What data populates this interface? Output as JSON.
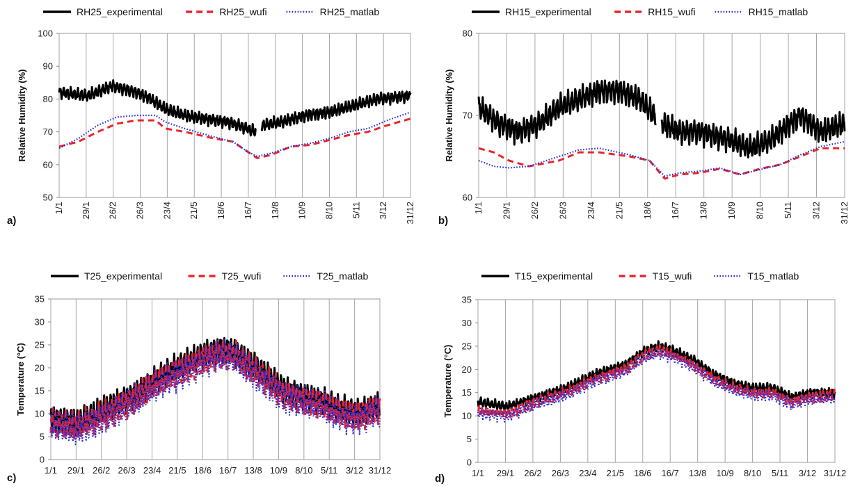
{
  "chart_data": [
    {
      "panel_label": "a)",
      "type": "line",
      "ylabel": "Relative Humidity (%)",
      "ylim": [
        50,
        100
      ],
      "yticks": [
        50,
        60,
        70,
        80,
        90,
        100
      ],
      "xticks": [
        "1/1",
        "29/1",
        "26/2",
        "26/3",
        "23/4",
        "21/5",
        "18/6",
        "16/7",
        "13/8",
        "10/9",
        "8/10",
        "5/11",
        "3/12",
        "31/12"
      ],
      "x_tick_rotation": "vertical",
      "grid": "vertical",
      "legend_position": "top",
      "series": [
        {
          "name": "RH25_experimental",
          "color": "#000000",
          "style": "solid",
          "noise": 2.2,
          "gaps": [
            [
              204,
              210
            ]
          ],
          "points": [
            [
              0,
              82
            ],
            [
              30,
              81
            ],
            [
              55,
              84
            ],
            [
              80,
              82
            ],
            [
              95,
              80
            ],
            [
              110,
              77
            ],
            [
              130,
              75
            ],
            [
              150,
              74
            ],
            [
              175,
              73
            ],
            [
              195,
              71
            ],
            [
              203,
              70
            ],
            [
              211,
              72
            ],
            [
              230,
              73
            ],
            [
              255,
              75
            ],
            [
              280,
              76
            ],
            [
              305,
              78
            ],
            [
              330,
              80
            ],
            [
              364,
              81
            ]
          ]
        },
        {
          "name": "RH25_wufi",
          "color": "#e8262b",
          "style": "dashed",
          "noise": 0,
          "points": [
            [
              0,
              65.5
            ],
            [
              20,
              67
            ],
            [
              40,
              70
            ],
            [
              60,
              72.5
            ],
            [
              80,
              73.5
            ],
            [
              100,
              73.5
            ],
            [
              110,
              71
            ],
            [
              130,
              70
            ],
            [
              160,
              68
            ],
            [
              180,
              67
            ],
            [
              195,
              64
            ],
            [
              205,
              62
            ],
            [
              220,
              63
            ],
            [
              240,
              65.5
            ],
            [
              260,
              66
            ],
            [
              280,
              67.5
            ],
            [
              300,
              69
            ],
            [
              320,
              70
            ],
            [
              340,
              72
            ],
            [
              364,
              74
            ]
          ]
        },
        {
          "name": "RH25_matlab",
          "color": "#2b2bdc",
          "style": "dotted",
          "noise": 0,
          "points": [
            [
              0,
              65
            ],
            [
              20,
              68
            ],
            [
              40,
              72
            ],
            [
              60,
              74.5
            ],
            [
              80,
              75
            ],
            [
              100,
              75
            ],
            [
              110,
              73
            ],
            [
              130,
              71
            ],
            [
              160,
              68.5
            ],
            [
              180,
              67
            ],
            [
              195,
              64
            ],
            [
              205,
              62.5
            ],
            [
              220,
              63.5
            ],
            [
              240,
              65.5
            ],
            [
              260,
              66.5
            ],
            [
              280,
              68
            ],
            [
              300,
              70
            ],
            [
              320,
              71
            ],
            [
              340,
              73.5
            ],
            [
              364,
              76
            ]
          ]
        }
      ]
    },
    {
      "panel_label": "b)",
      "type": "line",
      "ylabel": "Relative Humidity (%)",
      "ylim": [
        60,
        80
      ],
      "yticks": [
        60,
        70,
        80
      ],
      "xticks": [
        "1/1",
        "29/1",
        "26/2",
        "26/3",
        "23/4",
        "21/5",
        "18/6",
        "16/7",
        "13/8",
        "10/9",
        "8/10",
        "5/11",
        "3/12",
        "31/12"
      ],
      "x_tick_rotation": "vertical",
      "grid": "vertical",
      "legend_position": "top",
      "series": [
        {
          "name": "RH15_experimental",
          "color": "#000000",
          "style": "solid",
          "noise": 1.8,
          "gaps": [
            [
              176,
              182
            ]
          ],
          "points": [
            [
              0,
              71
            ],
            [
              20,
              69
            ],
            [
              40,
              68
            ],
            [
              60,
              69
            ],
            [
              80,
              71
            ],
            [
              100,
              72
            ],
            [
              120,
              73
            ],
            [
              140,
              73
            ],
            [
              160,
              72
            ],
            [
              175,
              70
            ],
            [
              183,
              69
            ],
            [
              200,
              68
            ],
            [
              220,
              68
            ],
            [
              250,
              67
            ],
            [
              270,
              66
            ],
            [
              290,
              67
            ],
            [
              320,
              70
            ],
            [
              340,
              68
            ],
            [
              364,
              69
            ]
          ]
        },
        {
          "name": "RH15_wufi",
          "color": "#e8262b",
          "style": "dashed",
          "noise": 0,
          "points": [
            [
              0,
              66
            ],
            [
              15,
              65.5
            ],
            [
              30,
              64.5
            ],
            [
              50,
              63.8
            ],
            [
              80,
              64.5
            ],
            [
              100,
              65.5
            ],
            [
              120,
              65.5
            ],
            [
              150,
              65
            ],
            [
              170,
              64.5
            ],
            [
              185,
              62.3
            ],
            [
              200,
              62.8
            ],
            [
              220,
              63
            ],
            [
              240,
              63.5
            ],
            [
              260,
              62.8
            ],
            [
              280,
              63.5
            ],
            [
              300,
              64
            ],
            [
              320,
              65
            ],
            [
              340,
              66
            ],
            [
              364,
              66
            ]
          ]
        },
        {
          "name": "RH15_matlab",
          "color": "#2b2bdc",
          "style": "dotted",
          "noise": 0,
          "points": [
            [
              0,
              64.5
            ],
            [
              15,
              63.8
            ],
            [
              30,
              63.6
            ],
            [
              50,
              63.8
            ],
            [
              80,
              65
            ],
            [
              100,
              65.8
            ],
            [
              120,
              66
            ],
            [
              150,
              65.2
            ],
            [
              170,
              64.5
            ],
            [
              185,
              62.6
            ],
            [
              200,
              63
            ],
            [
              220,
              63.2
            ],
            [
              240,
              63.6
            ],
            [
              260,
              62.8
            ],
            [
              280,
              63.4
            ],
            [
              300,
              64
            ],
            [
              320,
              65.2
            ],
            [
              340,
              66.2
            ],
            [
              364,
              66.8
            ]
          ]
        }
      ]
    },
    {
      "panel_label": "c)",
      "type": "line",
      "ylabel": "Temperature (°C)",
      "ylim": [
        0,
        35
      ],
      "yticks": [
        0,
        5,
        10,
        15,
        20,
        25,
        30,
        35
      ],
      "xticks": [
        "1/1",
        "29/1",
        "26/2",
        "26/3",
        "23/4",
        "21/5",
        "18/6",
        "16/7",
        "13/8",
        "10/9",
        "8/10",
        "5/11",
        "3/12",
        "31/12"
      ],
      "x_tick_rotation": "horizontal",
      "grid": "vertical",
      "legend_position": "top",
      "series": [
        {
          "name": "T25_experimental",
          "color": "#000000",
          "style": "solid",
          "noise": 3.5,
          "points": [
            [
              0,
              9
            ],
            [
              30,
              8
            ],
            [
              60,
              11
            ],
            [
              90,
              14
            ],
            [
              120,
              18
            ],
            [
              150,
              21
            ],
            [
              170,
              23
            ],
            [
              185,
              24
            ],
            [
              200,
              24
            ],
            [
              220,
              21
            ],
            [
              240,
              18
            ],
            [
              260,
              15
            ],
            [
              280,
              14
            ],
            [
              300,
              13
            ],
            [
              320,
              11
            ],
            [
              340,
              10
            ],
            [
              364,
              12
            ]
          ]
        },
        {
          "name": "T25_wufi",
          "color": "#e8262b",
          "style": "dashed",
          "noise": 3.8,
          "points": [
            [
              0,
              8
            ],
            [
              30,
              7
            ],
            [
              60,
              10
            ],
            [
              90,
              13
            ],
            [
              120,
              17
            ],
            [
              150,
              20
            ],
            [
              170,
              22
            ],
            [
              185,
              23
            ],
            [
              200,
              23
            ],
            [
              220,
              20
            ],
            [
              240,
              17
            ],
            [
              260,
              14
            ],
            [
              280,
              13
            ],
            [
              300,
              12
            ],
            [
              320,
              10
            ],
            [
              340,
              9.5
            ],
            [
              364,
              11.5
            ]
          ]
        },
        {
          "name": "T25_matlab",
          "color": "#2b2bdc",
          "style": "dotted",
          "noise": 4.2,
          "points": [
            [
              0,
              7.5
            ],
            [
              30,
              6.5
            ],
            [
              60,
              9.5
            ],
            [
              90,
              12.5
            ],
            [
              120,
              16.5
            ],
            [
              150,
              19.5
            ],
            [
              170,
              21.5
            ],
            [
              185,
              22.5
            ],
            [
              200,
              22.5
            ],
            [
              220,
              19.5
            ],
            [
              240,
              16.5
            ],
            [
              260,
              13.5
            ],
            [
              280,
              12.5
            ],
            [
              300,
              11.5
            ],
            [
              320,
              9.5
            ],
            [
              340,
              9
            ],
            [
              364,
              11
            ]
          ]
        }
      ]
    },
    {
      "panel_label": "d)",
      "type": "line",
      "ylabel": "Temperature (°C)",
      "ylim": [
        0,
        35
      ],
      "yticks": [
        0,
        5,
        10,
        15,
        20,
        25,
        30,
        35
      ],
      "xticks": [
        "1/1",
        "29/1",
        "26/2",
        "26/3",
        "23/4",
        "21/5",
        "18/6",
        "16/7",
        "13/8",
        "10/9",
        "8/10",
        "5/11",
        "3/12",
        "31/12"
      ],
      "x_tick_rotation": "horizontal",
      "grid": "vertical",
      "legend_position": "top",
      "series": [
        {
          "name": "T15_experimental",
          "color": "#000000",
          "style": "solid",
          "noise": 1.2,
          "points": [
            [
              0,
              13
            ],
            [
              30,
              12
            ],
            [
              60,
              14
            ],
            [
              90,
              16
            ],
            [
              120,
              19
            ],
            [
              150,
              21
            ],
            [
              170,
              24
            ],
            [
              185,
              25
            ],
            [
              200,
              24
            ],
            [
              220,
              22
            ],
            [
              240,
              19
            ],
            [
              260,
              17
            ],
            [
              280,
              16
            ],
            [
              300,
              16
            ],
            [
              320,
              14
            ],
            [
              340,
              15
            ],
            [
              364,
              15
            ]
          ]
        },
        {
          "name": "T15_wufi",
          "color": "#e8262b",
          "style": "dashed",
          "noise": 1.4,
          "points": [
            [
              0,
              11
            ],
            [
              30,
              10.5
            ],
            [
              60,
              13
            ],
            [
              90,
              15
            ],
            [
              120,
              18
            ],
            [
              150,
              20
            ],
            [
              170,
              23
            ],
            [
              185,
              24
            ],
            [
              200,
              23
            ],
            [
              220,
              21
            ],
            [
              240,
              18
            ],
            [
              260,
              16
            ],
            [
              280,
              15
            ],
            [
              300,
              15
            ],
            [
              320,
              13
            ],
            [
              340,
              14
            ],
            [
              364,
              14.5
            ]
          ]
        },
        {
          "name": "T15_matlab",
          "color": "#2b2bdc",
          "style": "dotted",
          "noise": 1.5,
          "points": [
            [
              0,
              10.5
            ],
            [
              30,
              10
            ],
            [
              60,
              12.5
            ],
            [
              90,
              14.5
            ],
            [
              120,
              17.5
            ],
            [
              150,
              19.5
            ],
            [
              170,
              22.5
            ],
            [
              185,
              23.5
            ],
            [
              200,
              22.5
            ],
            [
              220,
              20.5
            ],
            [
              240,
              17.5
            ],
            [
              260,
              15.5
            ],
            [
              280,
              14.5
            ],
            [
              300,
              14.5
            ],
            [
              320,
              12.5
            ],
            [
              340,
              13.5
            ],
            [
              364,
              14
            ]
          ]
        }
      ]
    }
  ]
}
